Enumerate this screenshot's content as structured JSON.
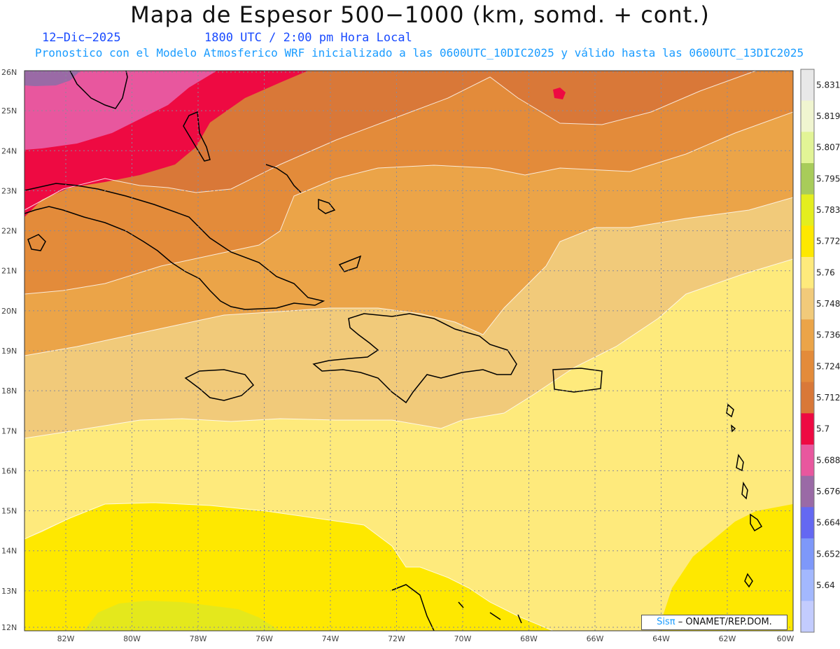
{
  "header": {
    "title": "Mapa de Espesor 500−1000 (km, somd. + cont.)",
    "date": "12−Dic−2025",
    "time": "1800 UTC / 2:00 pm Hora Local",
    "subtitle": "Pronostico con el Modelo Atmosferico WRF inicializado a las 0600UTC_10DIC2025 y válido hasta las  0600UTC_13DIC2025"
  },
  "map": {
    "lat_labels": [
      "26N",
      "25N",
      "24N",
      "23N",
      "22N",
      "21N",
      "20N",
      "19N",
      "18N",
      "17N",
      "16N",
      "15N",
      "14N",
      "13N",
      "12N"
    ],
    "lon_labels": [
      "82W",
      "80W",
      "78W",
      "76W",
      "74W",
      "72W",
      "70W",
      "68W",
      "66W",
      "64W",
      "62W",
      "60W"
    ],
    "colors": {
      "c5688": "#e8579e",
      "c5676": "#9a6aa6",
      "c5700": "#ee0a42",
      "c5712": "#d97838",
      "c5724": "#e38b3a",
      "c5736": "#eba448",
      "c5748": "#f1ca7a",
      "c5760": "#feea7c",
      "c5772": "#fee800",
      "c5783": "#e4e81c",
      "land": "#000000"
    }
  },
  "colorbar": {
    "levels": [
      "5.831",
      "5.819",
      "5.807",
      "5.795",
      "5.783",
      "5.772",
      "5.76",
      "5.748",
      "5.736",
      "5.724",
      "5.712",
      "5.7",
      "5.688",
      "5.676",
      "5.664",
      "5.652",
      "5.64"
    ],
    "colors": [
      "#e8e8e8",
      "#f0f5d0",
      "#e2f496",
      "#a8cc5a",
      "#e4ee1e",
      "#fee800",
      "#feea7c",
      "#f1ca7a",
      "#eba448",
      "#e38b3a",
      "#d97838",
      "#ee0a42",
      "#e8579e",
      "#9a6aa6",
      "#6468f2",
      "#7e98fa",
      "#a3b8fe",
      "#c3ccfe"
    ]
  },
  "credit": {
    "sis": "Sisπ",
    "text": "– ONAMET/REP.DOM."
  }
}
